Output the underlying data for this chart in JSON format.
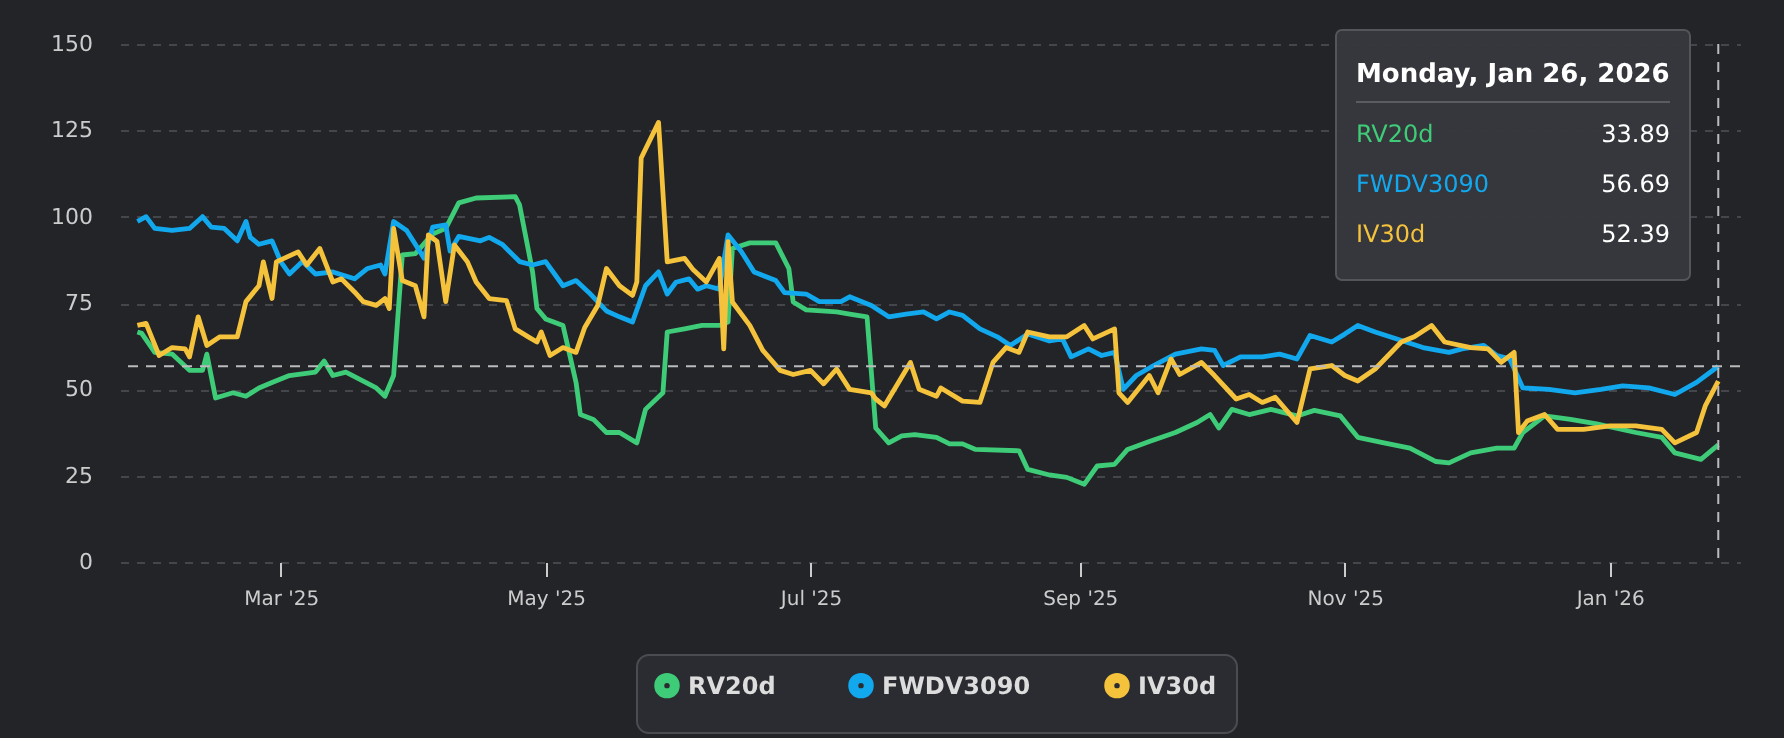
{
  "chart_data": {
    "type": "line",
    "xlim": [
      "2025-01-23",
      "2026-01-31"
    ],
    "ylim": [
      0,
      150
    ],
    "xticks": [
      {
        "value": "2025-03-01",
        "label": "Mar '25"
      },
      {
        "value": "2025-05-01",
        "label": "May '25"
      },
      {
        "value": "2025-07-01",
        "label": "Jul '25"
      },
      {
        "value": "2025-09-01",
        "label": "Sep '25"
      },
      {
        "value": "2025-11-01",
        "label": "Nov '25"
      },
      {
        "value": "2026-01-01",
        "label": "Jan '26"
      }
    ],
    "yticks": [
      0,
      25,
      50,
      75,
      100,
      125,
      150
    ],
    "grid": "y",
    "legend": "bottom",
    "marker": "none",
    "line_style": "solid",
    "annotations": [
      "Monday, Jan 26, 2026",
      "33.89",
      "56.69",
      "52.39"
    ],
    "ref_lines": [
      {
        "axis": "y",
        "value": 56.69,
        "color": "#bbbbbb",
        "line_style": "dashed"
      },
      {
        "axis": "x",
        "value": "2026-01-26",
        "color": "#bbbbbb",
        "line_style": "dashed"
      }
    ],
    "series": [
      {
        "name": "RV20d",
        "color": "#3ecc78",
        "x": [
          "2025-01-27",
          "2025-01-28",
          "2025-01-31",
          "2025-02-04",
          "2025-02-08",
          "2025-02-11",
          "2025-02-12",
          "2025-02-14",
          "2025-02-18",
          "2025-02-21",
          "2025-02-24",
          "2025-02-27",
          "2025-03-03",
          "2025-03-09",
          "2025-03-11",
          "2025-03-13",
          "2025-03-16",
          "2025-03-19",
          "2025-03-23",
          "2025-03-25",
          "2025-03-27",
          "2025-03-29",
          "2025-04-01",
          "2025-04-05",
          "2025-04-08",
          "2025-04-11",
          "2025-04-15",
          "2025-04-24",
          "2025-04-25",
          "2025-04-28",
          "2025-04-29",
          "2025-05-01",
          "2025-05-05",
          "2025-05-08",
          "2025-05-09",
          "2025-05-12",
          "2025-05-15",
          "2025-05-18",
          "2025-05-22",
          "2025-05-24",
          "2025-05-28",
          "2025-05-29",
          "2025-06-02",
          "2025-06-06",
          "2025-06-10",
          "2025-06-12",
          "2025-06-13",
          "2025-06-17",
          "2025-06-23",
          "2025-06-26",
          "2025-06-27",
          "2025-06-30",
          "2025-07-07",
          "2025-07-10",
          "2025-07-14",
          "2025-07-16",
          "2025-07-19",
          "2025-07-22",
          "2025-07-25",
          "2025-07-30",
          "2025-08-02",
          "2025-08-05",
          "2025-08-08",
          "2025-08-18",
          "2025-08-20",
          "2025-08-25",
          "2025-08-29",
          "2025-09-02",
          "2025-09-05",
          "2025-09-09",
          "2025-09-12",
          "2025-09-17",
          "2025-09-23",
          "2025-09-28",
          "2025-10-01",
          "2025-10-03",
          "2025-10-06",
          "2025-10-10",
          "2025-10-15",
          "2025-10-21",
          "2025-10-25",
          "2025-10-31",
          "2025-11-04",
          "2025-11-10",
          "2025-11-16",
          "2025-11-22",
          "2025-11-25",
          "2025-11-30",
          "2025-12-06",
          "2025-12-10",
          "2025-12-12",
          "2025-12-17",
          "2025-12-23",
          "2025-12-29",
          "2026-01-07",
          "2026-01-13",
          "2026-01-16",
          "2026-01-22",
          "2026-01-26"
        ],
        "values": [
          66.6,
          66.2,
          60.7,
          60.2,
          55.5,
          55.5,
          60.2,
          47.5,
          49,
          48,
          50.4,
          52,
          54,
          55,
          58.2,
          54,
          55,
          53,
          50.4,
          48,
          54,
          88.9,
          89.3,
          95,
          96.6,
          104,
          105.4,
          105.8,
          103.4,
          84,
          73.4,
          70.4,
          68.5,
          52,
          42.7,
          41.3,
          37.5,
          37.5,
          34.5,
          44.2,
          49,
          66.6,
          67.5,
          68.5,
          68.5,
          69.5,
          90.8,
          92.4,
          92.4,
          85,
          75.3,
          73,
          72.4,
          71.8,
          71,
          38.8,
          34.5,
          36.5,
          36.9,
          36.1,
          34.2,
          34.2,
          32.6,
          32.2,
          26.8,
          25.2,
          24.5,
          22.5,
          27.8,
          28.3,
          32.6,
          34.9,
          37.5,
          40.4,
          42.7,
          38.8,
          44.2,
          42.7,
          44.2,
          42.3,
          43.9,
          42.3,
          36.1,
          34.5,
          33,
          29.1,
          28.7,
          31.6,
          33,
          33,
          37.5,
          42.3,
          41.3,
          40,
          37.5,
          36.1,
          31.6,
          29.7,
          33.89
        ]
      },
      {
        "name": "FWDV3090",
        "color": "#12a8ee",
        "x": [
          "2025-01-27",
          "2025-01-29",
          "2025-01-31",
          "2025-02-04",
          "2025-02-08",
          "2025-02-11",
          "2025-02-13",
          "2025-02-16",
          "2025-02-19",
          "2025-02-21",
          "2025-02-22",
          "2025-02-24",
          "2025-02-27",
          "2025-03-01",
          "2025-03-03",
          "2025-03-06",
          "2025-03-09",
          "2025-03-13",
          "2025-03-18",
          "2025-03-21",
          "2025-03-24",
          "2025-03-25",
          "2025-03-27",
          "2025-03-30",
          "2025-04-03",
          "2025-04-05",
          "2025-04-08",
          "2025-04-09",
          "2025-04-11",
          "2025-04-16",
          "2025-04-18",
          "2025-04-21",
          "2025-04-25",
          "2025-04-28",
          "2025-05-01",
          "2025-05-05",
          "2025-05-08",
          "2025-05-11",
          "2025-05-15",
          "2025-05-18",
          "2025-05-21",
          "2025-05-24",
          "2025-05-27",
          "2025-05-29",
          "2025-05-31",
          "2025-06-03",
          "2025-06-05",
          "2025-06-07",
          "2025-06-10",
          "2025-06-12",
          "2025-06-15",
          "2025-06-18",
          "2025-06-23",
          "2025-06-25",
          "2025-06-30",
          "2025-07-03",
          "2025-07-08",
          "2025-07-10",
          "2025-07-15",
          "2025-07-19",
          "2025-07-23",
          "2025-07-27",
          "2025-07-30",
          "2025-08-02",
          "2025-08-05",
          "2025-08-09",
          "2025-08-13",
          "2025-08-16",
          "2025-08-20",
          "2025-08-25",
          "2025-08-28",
          "2025-08-30",
          "2025-09-03",
          "2025-09-06",
          "2025-09-09",
          "2025-09-11",
          "2025-09-14",
          "2025-09-18",
          "2025-09-23",
          "2025-09-29",
          "2025-10-02",
          "2025-10-04",
          "2025-10-08",
          "2025-10-13",
          "2025-10-17",
          "2025-10-21",
          "2025-10-24",
          "2025-10-29",
          "2025-11-01",
          "2025-11-04",
          "2025-11-08",
          "2025-11-13",
          "2025-11-19",
          "2025-11-25",
          "2025-11-28",
          "2025-12-03",
          "2025-12-06",
          "2025-12-09",
          "2025-12-12",
          "2025-12-18",
          "2025-12-24",
          "2025-12-30",
          "2026-01-04",
          "2026-01-10",
          "2026-01-16",
          "2026-01-21",
          "2026-01-26"
        ],
        "values": [
          98.6,
          100,
          96.6,
          96,
          96.6,
          100,
          97,
          96.6,
          93,
          98.6,
          94,
          92,
          93,
          87,
          83.4,
          87,
          83.4,
          84,
          82,
          85,
          86,
          83.4,
          98.6,
          96,
          88,
          97,
          97.6,
          90,
          94.3,
          93,
          94,
          92,
          87,
          86,
          87,
          80,
          81.5,
          78,
          72.7,
          71,
          69.5,
          80,
          84,
          77.6,
          81,
          82,
          79,
          80,
          79,
          94.7,
          90,
          84,
          81.5,
          78,
          77.6,
          75.4,
          75.4,
          76.8,
          74.3,
          71,
          71.8,
          72.4,
          70.4,
          72.4,
          71.4,
          67.5,
          65.2,
          62.7,
          66,
          64,
          64.6,
          59.4,
          61.7,
          59.8,
          60.7,
          50,
          54,
          56.9,
          60.2,
          61.7,
          61.3,
          56.9,
          59.4,
          59.4,
          60.2,
          58.8,
          65.6,
          63.7,
          66,
          68.5,
          66.6,
          64.6,
          62.1,
          60.7,
          61.7,
          62.7,
          59.8,
          58.8,
          50.4,
          50,
          49,
          50,
          51,
          50.4,
          48.5,
          52,
          56.69
        ]
      },
      {
        "name": "IV30d",
        "color": "#f5c23c",
        "x": [
          "2025-01-27",
          "2025-01-29",
          "2025-02-01",
          "2025-02-04",
          "2025-02-07",
          "2025-02-08",
          "2025-02-10",
          "2025-02-12",
          "2025-02-15",
          "2025-02-19",
          "2025-02-21",
          "2025-02-24",
          "2025-02-25",
          "2025-02-27",
          "2025-02-28",
          "2025-03-05",
          "2025-03-07",
          "2025-03-10",
          "2025-03-13",
          "2025-03-15",
          "2025-03-18",
          "2025-03-20",
          "2025-03-23",
          "2025-03-25",
          "2025-03-26",
          "2025-03-27",
          "2025-03-29",
          "2025-04-01",
          "2025-04-03",
          "2025-04-04",
          "2025-04-06",
          "2025-04-08",
          "2025-04-10",
          "2025-04-13",
          "2025-04-15",
          "2025-04-18",
          "2025-04-22",
          "2025-04-24",
          "2025-04-27",
          "2025-04-29",
          "2025-04-30",
          "2025-05-02",
          "2025-05-05",
          "2025-05-08",
          "2025-05-10",
          "2025-05-13",
          "2025-05-15",
          "2025-05-18",
          "2025-05-21",
          "2025-05-22",
          "2025-05-23",
          "2025-05-27",
          "2025-05-29",
          "2025-06-02",
          "2025-06-04",
          "2025-06-07",
          "2025-06-10",
          "2025-06-11",
          "2025-06-12",
          "2025-06-13",
          "2025-06-17",
          "2025-06-20",
          "2025-06-24",
          "2025-06-27",
          "2025-07-01",
          "2025-07-04",
          "2025-07-07",
          "2025-07-10",
          "2025-07-15",
          "2025-07-16",
          "2025-07-18",
          "2025-07-24",
          "2025-07-26",
          "2025-07-30",
          "2025-07-31",
          "2025-08-05",
          "2025-08-09",
          "2025-08-12",
          "2025-08-15",
          "2025-08-18",
          "2025-08-20",
          "2025-08-25",
          "2025-08-29",
          "2025-09-02",
          "2025-09-04",
          "2025-09-09",
          "2025-09-10",
          "2025-09-12",
          "2025-09-17",
          "2025-09-19",
          "2025-09-22",
          "2025-09-24",
          "2025-09-29",
          "2025-10-02",
          "2025-10-07",
          "2025-10-10",
          "2025-10-13",
          "2025-10-16",
          "2025-10-21",
          "2025-10-24",
          "2025-10-29",
          "2025-11-01",
          "2025-11-04",
          "2025-11-08",
          "2025-11-14",
          "2025-11-17",
          "2025-11-21",
          "2025-11-24",
          "2025-11-30",
          "2025-12-04",
          "2025-12-07",
          "2025-12-10",
          "2025-12-11",
          "2025-12-13",
          "2025-12-17",
          "2025-12-20",
          "2025-12-26",
          "2026-01-01",
          "2026-01-07",
          "2026-01-13",
          "2026-01-16",
          "2026-01-21",
          "2026-01-23",
          "2026-01-26"
        ],
        "values": [
          68.5,
          69.1,
          59.8,
          62.1,
          61.7,
          59.4,
          71,
          62.7,
          65.2,
          65.2,
          75.4,
          80,
          86.9,
          76.3,
          86.9,
          89.8,
          86,
          90.8,
          81.1,
          82,
          78.2,
          75.4,
          74.3,
          76.3,
          73.4,
          96.6,
          81.5,
          80,
          71,
          94.7,
          92.8,
          75.4,
          91.8,
          86.9,
          81.1,
          76.3,
          75.7,
          67.5,
          65.2,
          63.7,
          66.6,
          59.8,
          62.1,
          60.7,
          67.9,
          74.3,
          85,
          80,
          77.2,
          81.1,
          117,
          127.3,
          86.9,
          87.9,
          84.6,
          81.1,
          87.9,
          61.7,
          92.8,
          75.3,
          68.5,
          61.3,
          55.5,
          54.3,
          55.5,
          51.6,
          55.9,
          50,
          49,
          47.2,
          45.2,
          57.8,
          50,
          48,
          50.4,
          46.6,
          46.2,
          57.8,
          62.1,
          60.7,
          66.6,
          65.2,
          65.2,
          68.5,
          64.6,
          67.5,
          49,
          46.2,
          54,
          49,
          58.8,
          54.3,
          57.8,
          54,
          47.2,
          48.5,
          46.2,
          47.7,
          40.4,
          55.9,
          56.9,
          54,
          52.4,
          55.9,
          63.7,
          65.2,
          68.5,
          63.7,
          62.1,
          61.7,
          57.8,
          60.7,
          37.5,
          40.8,
          42.7,
          38.4,
          38.4,
          39.4,
          39.4,
          38.4,
          34.5,
          37.5,
          45.2,
          52.39
        ]
      }
    ]
  }
}
